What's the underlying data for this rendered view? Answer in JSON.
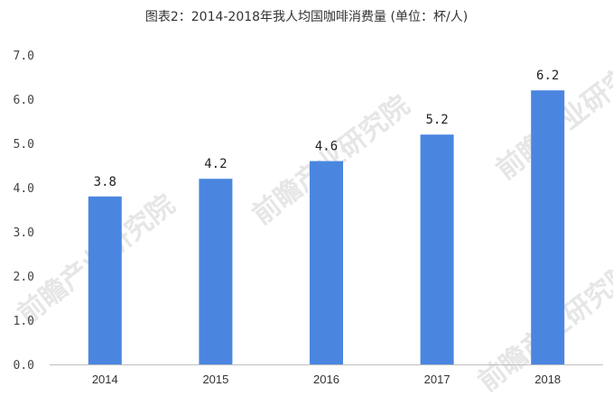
{
  "chart_data": {
    "type": "bar",
    "title": "图表2：2014-2018年我人均国咖啡消费量 (单位：杯/人)",
    "categories": [
      "2014",
      "2015",
      "2016",
      "2017",
      "2018"
    ],
    "values": [
      3.8,
      4.2,
      4.6,
      5.2,
      6.2
    ],
    "data_labels": [
      "3.8",
      "4.2",
      "4.6",
      "5.2",
      "6.2"
    ],
    "yticks": [
      "0.0",
      "1.0",
      "2.0",
      "3.0",
      "4.0",
      "5.0",
      "6.0",
      "7.0"
    ],
    "ylim": [
      0,
      7
    ],
    "grid": false,
    "bar_color": "#4a86e0",
    "watermark": "前瞻产业研究院"
  }
}
